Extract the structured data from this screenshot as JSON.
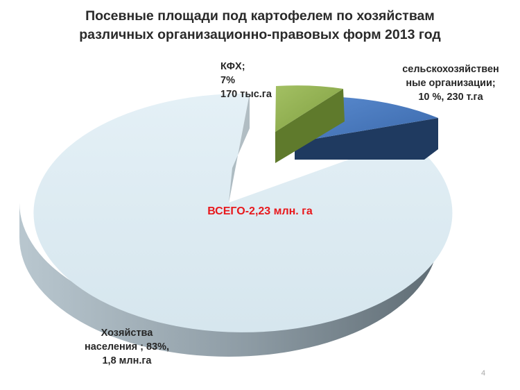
{
  "slide": {
    "title_line1": "Посевные площади под картофелем по хозяйствам",
    "title_line2": "различных организационно-правовых форм 2013 год",
    "page_number": "4"
  },
  "chart_data": {
    "type": "pie",
    "style": "3d-exploded",
    "title": "Посевные площади под картофелем по хозяйствам различных организационно-правовых форм 2013 год",
    "annotation": "ВСЕГО-2,23 млн. га",
    "slices": [
      {
        "label_lines": [
          "КФХ;",
          "7%",
          "170 тыс.га"
        ],
        "percent": 7,
        "area": "170 тыс.га",
        "color": "#8fae4f",
        "side_color": "#5f7a2c"
      },
      {
        "label_lines": [
          "сельскохозяйствен",
          "ные организации;",
          "10 %, 230 т.га"
        ],
        "percent": 10,
        "area": "230 т.га",
        "color": "#4a7cc0",
        "side_color": "#1f3a60"
      },
      {
        "label_lines": [
          "Хозяйства",
          "населения ; 83%,",
          "1,8 млн.га"
        ],
        "percent": 83,
        "area": "1,8 млн.га",
        "color": "#dbeaf2",
        "side_color": "#7c8c96"
      }
    ]
  }
}
